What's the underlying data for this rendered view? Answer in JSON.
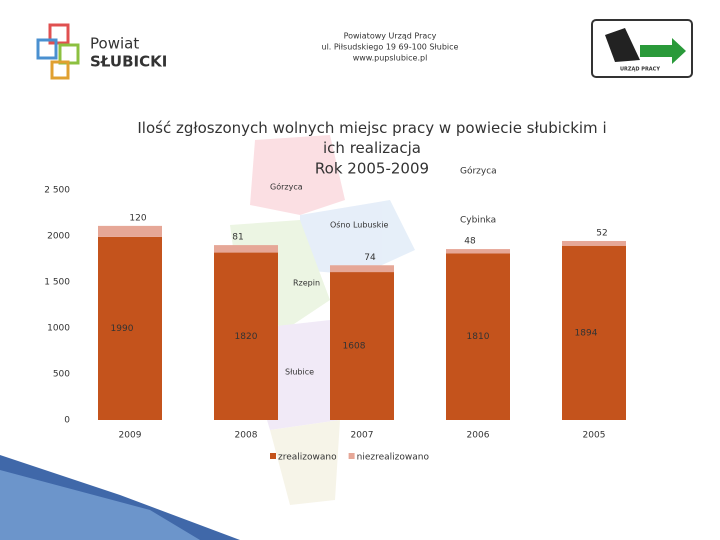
{
  "header": {
    "line1": "Powiatowy Urząd Pracy",
    "line2": "ul. Piłsudskiego 19 69-100 Słubice",
    "line3": "www.pupslubice.pl"
  },
  "logos": {
    "left_top": "Powiat",
    "left_bottom": "SŁUBICKI",
    "right": "URZĄD PRACY"
  },
  "background_map": {
    "labels": [
      "Górzyca",
      "Ośno Lubuskie",
      "Rzepin",
      "Słubice",
      "Cybinka"
    ]
  },
  "chart_data": {
    "type": "stacked_bar",
    "title": "Ilość zgłoszonych wolnych miejsc pracy w powiecie słubickim i ich realizacja",
    "subtitle": "Rok 2005-2009",
    "categories": [
      "2009",
      "2008",
      "2007",
      "2006",
      "2005"
    ],
    "series": [
      {
        "name": "zrealizowano",
        "color": "#c4531c",
        "values": [
          1990,
          1820,
          1608,
          1810,
          1894
        ]
      },
      {
        "name": "niezrealizowano",
        "color": "#e6a797",
        "values": [
          120,
          81,
          74,
          48,
          52
        ]
      }
    ],
    "ylim": [
      0,
      2500
    ],
    "yticks": [
      0,
      500,
      {
        "value": 1000,
        "label": "1000"
      },
      {
        "value": 1500,
        "label": "1 500"
      },
      2000,
      {
        "value": 2500,
        "label": "2 500"
      }
    ],
    "grid": false,
    "legend": "bottom"
  }
}
